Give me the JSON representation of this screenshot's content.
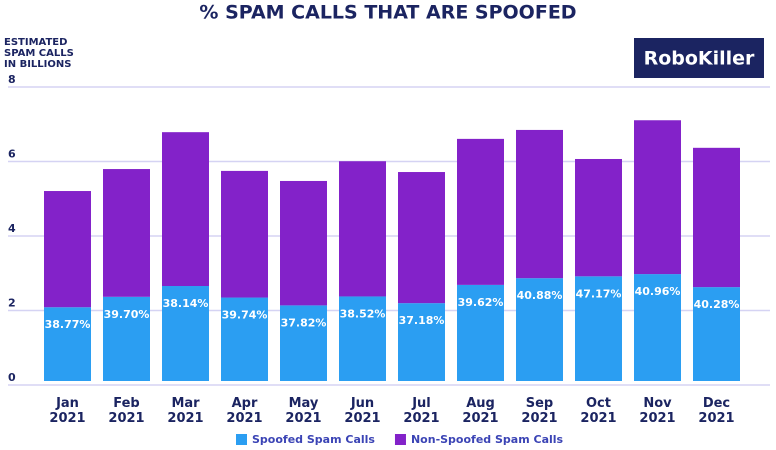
{
  "chart_data": {
    "type": "stacked_bar",
    "title": "% SPAM CALLS THAT ARE SPOOFED",
    "y_label": [
      "ESTIMATED",
      "SPAM CALLS",
      "IN BILLIONS"
    ],
    "brand": "RoboKiller",
    "categories": [
      "Jan 2021",
      "Feb 2021",
      "Mar 2021",
      "Apr 2021",
      "May 2021",
      "Jun 2021",
      "Jul 2021",
      "Aug 2021",
      "Sep 2021",
      "Oct 2021",
      "Nov 2021",
      "Dec 2021"
    ],
    "series": [
      {
        "name": "Spoofed Spam Calls",
        "color": "#2b9ef2",
        "values": [
          1.98,
          2.26,
          2.55,
          2.24,
          2.03,
          2.27,
          2.09,
          2.58,
          2.76,
          2.81,
          2.87,
          2.52
        ]
      },
      {
        "name": "Non-Spoofed Spam Calls",
        "color": "#8322c9",
        "values": [
          3.12,
          3.43,
          4.13,
          3.4,
          3.34,
          3.63,
          3.52,
          3.92,
          3.98,
          3.15,
          4.13,
          3.74
        ]
      }
    ],
    "spoofed_share_labels": [
      "38.77%",
      "39.70%",
      "38.14%",
      "39.74%",
      "37.82%",
      "38.52%",
      "37.18%",
      "39.62%",
      "40.88%",
      "47.17%",
      "40.96%",
      "40.28%"
    ],
    "ylim": [
      0,
      8
    ],
    "yticks": [
      0,
      2,
      4,
      6,
      8
    ],
    "grid": true,
    "legend": "bottom"
  }
}
